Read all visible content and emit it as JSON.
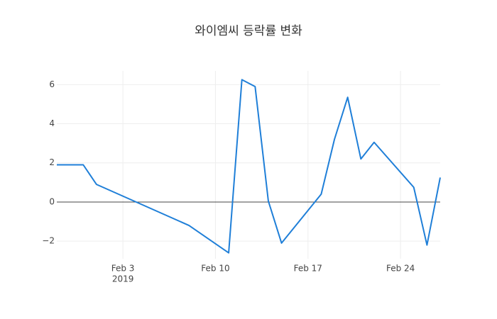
{
  "chart_data": {
    "type": "line",
    "title": "와이엠씨 등락률 변화",
    "x": [
      "2019-01-29",
      "2019-01-31",
      "2019-02-01",
      "2019-02-08",
      "2019-02-11",
      "2019-02-12",
      "2019-02-13",
      "2019-02-14",
      "2019-02-15",
      "2019-02-18",
      "2019-02-19",
      "2019-02-20",
      "2019-02-21",
      "2019-02-22",
      "2019-02-25",
      "2019-02-26",
      "2019-02-27"
    ],
    "series": [
      {
        "color": "#1f7fd8",
        "values": [
          1.9,
          1.9,
          0.9,
          -1.2,
          -2.6,
          6.25,
          5.9,
          0.05,
          -2.1,
          0.4,
          3.2,
          5.35,
          2.2,
          3.05,
          0.75,
          -2.2,
          1.25
        ]
      }
    ],
    "xlim": [
      "2019-01-29",
      "2019-02-27"
    ],
    "xticks": [
      {
        "value": "2019-02-03",
        "label": "Feb 3"
      },
      {
        "value": "2019-02-10",
        "label": "Feb 10"
      },
      {
        "value": "2019-02-17",
        "label": "Feb 17"
      },
      {
        "value": "2019-02-24",
        "label": "Feb 24"
      }
    ],
    "xtick_year_label": "2019",
    "ylim": [
      -2.9,
      6.7
    ],
    "yticks": [
      {
        "value": -2,
        "label": "−2"
      },
      0,
      2,
      4,
      6
    ],
    "grid": true,
    "zeroline": true
  }
}
